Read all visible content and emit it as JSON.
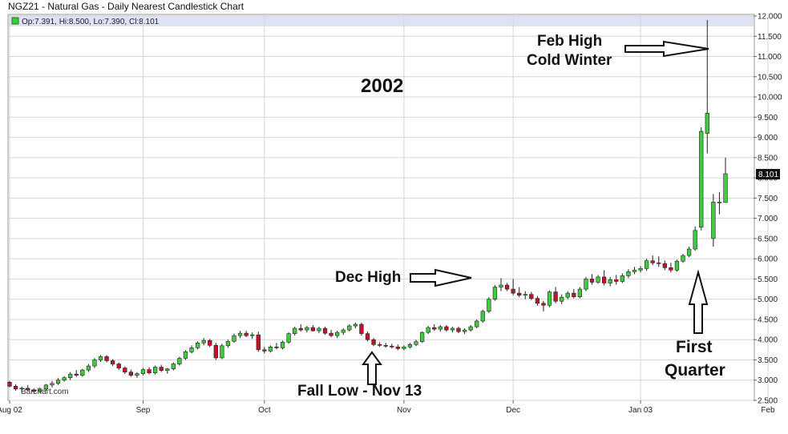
{
  "title": "NGZ21 - Natural Gas - Daily Nearest Candlestick Chart",
  "ohlc_label": "Op:7.391, Hi:8.500, Lo:7.390, Cl:8.101",
  "watermark": "Barchart.com",
  "last_price": "8.101",
  "colors": {
    "up": "#3fcc3f",
    "down": "#c8102e",
    "grid": "#d6d6d6",
    "header": "#dde3f5"
  },
  "chart_data": {
    "type": "candlestick",
    "ylim": [
      2.5,
      12.0
    ],
    "yticks": [
      "2.500",
      "3.000",
      "3.500",
      "4.000",
      "4.500",
      "5.000",
      "5.500",
      "6.000",
      "6.500",
      "7.000",
      "7.500",
      "8.000",
      "8.500",
      "9.000",
      "9.500",
      "10.000",
      "10.500",
      "11.000",
      "11.500",
      "12.000"
    ],
    "xticks": [
      {
        "label": "Aug 02",
        "i": 0
      },
      {
        "label": "Sep",
        "i": 22
      },
      {
        "label": "Oct",
        "i": 42
      },
      {
        "label": "Nov",
        "i": 65
      },
      {
        "label": "Dec",
        "i": 83
      },
      {
        "label": "Jan 03",
        "i": 104
      },
      {
        "label": "Feb",
        "i": 125
      }
    ],
    "candles": [
      [
        2.95,
        2.98,
        2.82,
        2.85
      ],
      [
        2.85,
        2.9,
        2.74,
        2.78
      ],
      [
        2.78,
        2.84,
        2.7,
        2.8
      ],
      [
        2.8,
        2.88,
        2.74,
        2.76
      ],
      [
        2.76,
        2.8,
        2.66,
        2.72
      ],
      [
        2.72,
        2.82,
        2.68,
        2.78
      ],
      [
        2.78,
        2.9,
        2.74,
        2.88
      ],
      [
        2.88,
        2.98,
        2.82,
        2.92
      ],
      [
        2.92,
        3.05,
        2.88,
        3.0
      ],
      [
        3.0,
        3.1,
        2.96,
        3.06
      ],
      [
        3.06,
        3.2,
        3.0,
        3.15
      ],
      [
        3.15,
        3.25,
        3.08,
        3.12
      ],
      [
        3.12,
        3.28,
        3.08,
        3.25
      ],
      [
        3.25,
        3.4,
        3.2,
        3.35
      ],
      [
        3.35,
        3.55,
        3.3,
        3.5
      ],
      [
        3.5,
        3.62,
        3.45,
        3.58
      ],
      [
        3.58,
        3.62,
        3.44,
        3.48
      ],
      [
        3.48,
        3.52,
        3.35,
        3.4
      ],
      [
        3.4,
        3.44,
        3.25,
        3.3
      ],
      [
        3.3,
        3.34,
        3.15,
        3.2
      ],
      [
        3.2,
        3.26,
        3.08,
        3.12
      ],
      [
        3.12,
        3.2,
        3.06,
        3.16
      ],
      [
        3.16,
        3.3,
        3.12,
        3.26
      ],
      [
        3.26,
        3.32,
        3.14,
        3.18
      ],
      [
        3.18,
        3.36,
        3.14,
        3.32
      ],
      [
        3.32,
        3.38,
        3.2,
        3.24
      ],
      [
        3.24,
        3.3,
        3.16,
        3.28
      ],
      [
        3.28,
        3.44,
        3.24,
        3.4
      ],
      [
        3.4,
        3.58,
        3.36,
        3.54
      ],
      [
        3.54,
        3.74,
        3.5,
        3.7
      ],
      [
        3.7,
        3.86,
        3.66,
        3.8
      ],
      [
        3.8,
        3.96,
        3.76,
        3.92
      ],
      [
        3.92,
        4.04,
        3.86,
        3.98
      ],
      [
        3.98,
        4.02,
        3.82,
        3.86
      ],
      [
        3.86,
        3.92,
        3.5,
        3.55
      ],
      [
        3.55,
        3.9,
        3.52,
        3.85
      ],
      [
        3.85,
        4.0,
        3.8,
        3.96
      ],
      [
        3.96,
        4.15,
        3.92,
        4.1
      ],
      [
        4.1,
        4.22,
        4.04,
        4.16
      ],
      [
        4.16,
        4.22,
        4.06,
        4.1
      ],
      [
        4.1,
        4.18,
        4.02,
        4.12
      ],
      [
        4.12,
        4.2,
        3.7,
        3.75
      ],
      [
        3.75,
        3.82,
        3.66,
        3.72
      ],
      [
        3.72,
        3.86,
        3.68,
        3.82
      ],
      [
        3.82,
        3.92,
        3.76,
        3.8
      ],
      [
        3.8,
        3.98,
        3.76,
        3.94
      ],
      [
        3.94,
        4.18,
        3.9,
        4.15
      ],
      [
        4.15,
        4.32,
        4.1,
        4.28
      ],
      [
        4.28,
        4.38,
        4.2,
        4.24
      ],
      [
        4.24,
        4.34,
        4.18,
        4.3
      ],
      [
        4.3,
        4.36,
        4.2,
        4.22
      ],
      [
        4.22,
        4.32,
        4.16,
        4.28
      ],
      [
        4.28,
        4.32,
        4.12,
        4.16
      ],
      [
        4.16,
        4.24,
        4.06,
        4.1
      ],
      [
        4.1,
        4.22,
        4.04,
        4.18
      ],
      [
        4.18,
        4.28,
        4.12,
        4.24
      ],
      [
        4.24,
        4.38,
        4.2,
        4.34
      ],
      [
        4.34,
        4.42,
        4.28,
        4.38
      ],
      [
        4.38,
        4.42,
        4.1,
        4.15
      ],
      [
        4.15,
        4.2,
        3.96,
        4.0
      ],
      [
        4.0,
        4.04,
        3.84,
        3.88
      ],
      [
        3.88,
        3.94,
        3.82,
        3.86
      ],
      [
        3.86,
        3.92,
        3.8,
        3.84
      ],
      [
        3.84,
        3.9,
        3.78,
        3.82
      ],
      [
        3.82,
        3.88,
        3.74,
        3.78
      ],
      [
        3.78,
        3.86,
        3.74,
        3.82
      ],
      [
        3.82,
        3.92,
        3.78,
        3.88
      ],
      [
        3.88,
        4.0,
        3.84,
        3.95
      ],
      [
        3.95,
        4.2,
        3.92,
        4.18
      ],
      [
        4.18,
        4.34,
        4.14,
        4.3
      ],
      [
        4.3,
        4.38,
        4.22,
        4.26
      ],
      [
        4.26,
        4.36,
        4.2,
        4.32
      ],
      [
        4.32,
        4.36,
        4.2,
        4.24
      ],
      [
        4.24,
        4.32,
        4.18,
        4.28
      ],
      [
        4.28,
        4.32,
        4.16,
        4.2
      ],
      [
        4.2,
        4.28,
        4.14,
        4.24
      ],
      [
        4.24,
        4.36,
        4.2,
        4.32
      ],
      [
        4.32,
        4.5,
        4.28,
        4.46
      ],
      [
        4.46,
        4.74,
        4.42,
        4.7
      ],
      [
        4.7,
        5.05,
        4.66,
        5.0
      ],
      [
        5.0,
        5.35,
        4.96,
        5.3
      ],
      [
        5.3,
        5.52,
        5.2,
        5.35
      ],
      [
        5.35,
        5.4,
        5.2,
        5.25
      ],
      [
        5.25,
        5.5,
        5.1,
        5.15
      ],
      [
        5.15,
        5.3,
        5.05,
        5.1
      ],
      [
        5.1,
        5.2,
        5.0,
        5.12
      ],
      [
        5.12,
        5.18,
        4.98,
        5.02
      ],
      [
        5.02,
        5.08,
        4.84,
        4.9
      ],
      [
        4.9,
        4.96,
        4.7,
        4.85
      ],
      [
        4.85,
        5.22,
        4.8,
        5.18
      ],
      [
        5.18,
        5.3,
        4.9,
        4.95
      ],
      [
        4.95,
        5.12,
        4.88,
        5.05
      ],
      [
        5.05,
        5.2,
        5.0,
        5.15
      ],
      [
        5.15,
        5.25,
        5.02,
        5.06
      ],
      [
        5.06,
        5.3,
        5.02,
        5.25
      ],
      [
        5.25,
        5.55,
        5.2,
        5.5
      ],
      [
        5.5,
        5.62,
        5.36,
        5.42
      ],
      [
        5.42,
        5.6,
        5.38,
        5.55
      ],
      [
        5.55,
        5.72,
        5.34,
        5.4
      ],
      [
        5.4,
        5.55,
        5.32,
        5.48
      ],
      [
        5.48,
        5.6,
        5.36,
        5.44
      ],
      [
        5.44,
        5.64,
        5.4,
        5.58
      ],
      [
        5.58,
        5.74,
        5.52,
        5.68
      ],
      [
        5.68,
        5.8,
        5.62,
        5.72
      ],
      [
        5.72,
        5.82,
        5.66,
        5.76
      ],
      [
        5.76,
        6.0,
        5.7,
        5.95
      ],
      [
        5.95,
        6.08,
        5.84,
        5.9
      ],
      [
        5.9,
        6.06,
        5.8,
        5.88
      ],
      [
        5.88,
        5.96,
        5.72,
        5.78
      ],
      [
        5.78,
        5.9,
        5.66,
        5.72
      ],
      [
        5.72,
        5.98,
        5.68,
        5.94
      ],
      [
        5.94,
        6.12,
        5.9,
        6.08
      ],
      [
        6.08,
        6.3,
        6.04,
        6.24
      ],
      [
        6.24,
        6.8,
        6.2,
        6.7
      ],
      [
        6.78,
        9.25,
        6.7,
        9.15
      ],
      [
        9.1,
        11.9,
        8.6,
        9.6
      ],
      [
        6.5,
        7.6,
        6.3,
        7.4
      ],
      [
        7.4,
        7.65,
        7.1,
        7.4
      ],
      [
        7.391,
        8.5,
        7.39,
        8.101
      ]
    ]
  },
  "annotations": {
    "year": "2002",
    "feb_high_line1": "Feb High",
    "feb_high_line2": "Cold Winter",
    "dec_high": "Dec High",
    "fall_low": "Fall Low - Nov 13",
    "first_quarter_line1": "First",
    "first_quarter_line2": "Quarter"
  }
}
